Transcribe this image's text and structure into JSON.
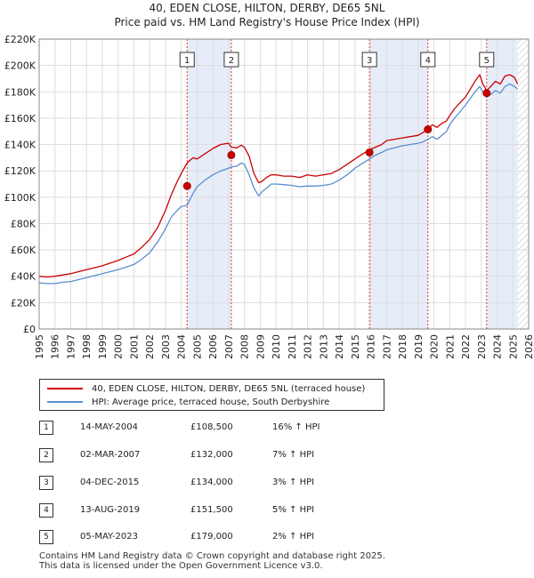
{
  "chart_data": {
    "type": "line",
    "title": "40, EDEN CLOSE, HILTON, DERBY, DE65 5NL",
    "subtitle": "Price paid vs. HM Land Registry's House Price Index (HPI)",
    "xlim": [
      1995,
      2026
    ],
    "ylim": [
      0,
      220000
    ],
    "y_ticks": [
      0,
      20000,
      40000,
      60000,
      80000,
      100000,
      120000,
      140000,
      160000,
      180000,
      200000,
      220000
    ],
    "y_tick_labels": [
      "£0",
      "£20K",
      "£40K",
      "£60K",
      "£80K",
      "£100K",
      "£120K",
      "£140K",
      "£160K",
      "£180K",
      "£200K",
      "£220K"
    ],
    "x_ticks": [
      1995,
      1996,
      1997,
      1998,
      1999,
      2000,
      2001,
      2002,
      2003,
      2004,
      2005,
      2006,
      2007,
      2008,
      2009,
      2010,
      2011,
      2012,
      2013,
      2014,
      2015,
      2016,
      2017,
      2018,
      2019,
      2020,
      2021,
      2022,
      2023,
      2024,
      2025,
      2026
    ],
    "x_tick_labels": [
      "1995",
      "1996",
      "1997",
      "1998",
      "1999",
      "2000",
      "2001",
      "2002",
      "2003",
      "2004",
      "2005",
      "2006",
      "2007",
      "2008",
      "2009",
      "2010",
      "2011",
      "2012",
      "2013",
      "2014",
      "2015",
      "2016",
      "2017",
      "2018",
      "2019",
      "2020",
      "2021",
      "2022",
      "2023",
      "2024",
      "2025",
      "2026"
    ],
    "series": [
      {
        "name": "40, EDEN CLOSE, HILTON, DERBY, DE65 5NL (terraced house)",
        "color": "#cc0000",
        "x": [
          1995.0,
          1995.5,
          1996.0,
          1996.5,
          1997.0,
          1997.5,
          1998.0,
          1998.5,
          1999.0,
          1999.5,
          2000.0,
          2000.5,
          2001.0,
          2001.5,
          2002.0,
          2002.5,
          2003.0,
          2003.37,
          2003.75,
          2004.0,
          2004.37,
          2004.75,
          2005.0,
          2005.5,
          2006.0,
          2006.5,
          2007.0,
          2007.17,
          2007.5,
          2007.8,
          2008.0,
          2008.3,
          2008.6,
          2008.9,
          2009.1,
          2009.4,
          2009.7,
          2010.0,
          2010.5,
          2011.0,
          2011.5,
          2012.0,
          2012.5,
          2013.0,
          2013.5,
          2014.0,
          2014.5,
          2015.0,
          2015.5,
          2015.92,
          2016.3,
          2016.7,
          2017.0,
          2017.5,
          2018.0,
          2018.5,
          2019.0,
          2019.3,
          2019.62,
          2019.9,
          2020.2,
          2020.5,
          2020.8,
          2021.0,
          2021.3,
          2021.6,
          2022.0,
          2022.3,
          2022.6,
          2022.9,
          2023.1,
          2023.34,
          2023.6,
          2023.9,
          2024.2,
          2024.5,
          2024.8,
          2025.1,
          2025.3
        ],
        "y": [
          40000,
          39500,
          40000,
          41000,
          42000,
          43500,
          45000,
          46500,
          48000,
          50000,
          52000,
          54500,
          57000,
          62000,
          68000,
          77000,
          90000,
          102000,
          112000,
          118000,
          126000,
          130000,
          129000,
          133000,
          137000,
          140000,
          141000,
          138000,
          137500,
          139500,
          138000,
          131000,
          118000,
          111000,
          112000,
          115000,
          117000,
          117000,
          116000,
          116000,
          115000,
          117000,
          116000,
          117000,
          118000,
          121000,
          125000,
          129000,
          133000,
          136000,
          138000,
          140000,
          143000,
          144000,
          145000,
          146000,
          147000,
          149000,
          152000,
          155000,
          153000,
          156000,
          158000,
          162000,
          167000,
          171000,
          176000,
          182000,
          188000,
          193000,
          186000,
          181000,
          184000,
          188000,
          186000,
          192000,
          193000,
          191000,
          186000
        ]
      },
      {
        "name": "HPI: Average price, terraced house, South Derbyshire",
        "color": "#5b8fd0",
        "x": [
          1995.0,
          1995.5,
          1996.0,
          1996.5,
          1997.0,
          1997.5,
          1998.0,
          1998.5,
          1999.0,
          1999.5,
          2000.0,
          2000.5,
          2001.0,
          2001.5,
          2002.0,
          2002.5,
          2003.0,
          2003.37,
          2003.75,
          2004.0,
          2004.37,
          2004.75,
          2005.0,
          2005.5,
          2006.0,
          2006.5,
          2007.0,
          2007.17,
          2007.5,
          2007.8,
          2008.0,
          2008.3,
          2008.6,
          2008.9,
          2009.1,
          2009.4,
          2009.7,
          2010.0,
          2010.5,
          2011.0,
          2011.5,
          2012.0,
          2012.5,
          2013.0,
          2013.5,
          2014.0,
          2014.5,
          2015.0,
          2015.5,
          2015.92,
          2016.3,
          2016.7,
          2017.0,
          2017.5,
          2018.0,
          2018.5,
          2019.0,
          2019.3,
          2019.62,
          2019.9,
          2020.2,
          2020.5,
          2020.8,
          2021.0,
          2021.3,
          2021.6,
          2022.0,
          2022.3,
          2022.6,
          2022.9,
          2023.1,
          2023.34,
          2023.6,
          2023.9,
          2024.2,
          2024.5,
          2024.8,
          2025.1,
          2025.3
        ],
        "y": [
          35000,
          34500,
          34500,
          35500,
          36000,
          37500,
          39000,
          40500,
          42000,
          43500,
          45000,
          47000,
          49000,
          53000,
          58000,
          66000,
          76000,
          85000,
          90000,
          93000,
          94000,
          103000,
          108000,
          113000,
          117000,
          120000,
          122000,
          123000,
          123500,
          126000,
          125000,
          117000,
          107000,
          101000,
          104000,
          107000,
          110000,
          110000,
          109500,
          109000,
          108000,
          108500,
          108500,
          109000,
          110000,
          113000,
          117000,
          122000,
          126000,
          129000,
          132000,
          134000,
          136000,
          137500,
          139000,
          140000,
          141000,
          142000,
          144000,
          146000,
          144000,
          147000,
          150000,
          155000,
          160000,
          164000,
          170000,
          175000,
          180000,
          184000,
          180000,
          176000,
          178000,
          181000,
          179000,
          184000,
          186000,
          184000,
          182000
        ]
      }
    ],
    "transactions": [
      {
        "label": "1",
        "x": 2004.37,
        "y": 108500
      },
      {
        "label": "2",
        "x": 2007.17,
        "y": 132000
      },
      {
        "label": "3",
        "x": 2015.92,
        "y": 134000
      },
      {
        "label": "4",
        "x": 2019.62,
        "y": 151500
      },
      {
        "label": "5",
        "x": 2023.34,
        "y": 179000
      }
    ],
    "shaded_periods": [
      [
        2004.37,
        2007.17
      ],
      [
        2015.92,
        2019.62
      ],
      [
        2023.34,
        2025.3
      ]
    ],
    "hatched_after": 2025.3,
    "grid": true
  },
  "legend": {
    "property_label": "40, EDEN CLOSE, HILTON, DERBY, DE65 5NL (terraced house)",
    "hpi_label": "HPI: Average price, terraced house, South Derbyshire",
    "property_color": "#cc0000",
    "hpi_color": "#5b8fd0"
  },
  "transactions_table": [
    {
      "num": "1",
      "date": "14-MAY-2004",
      "price": "£108,500",
      "hpi": "16% ↑ HPI"
    },
    {
      "num": "2",
      "date": "02-MAR-2007",
      "price": "£132,000",
      "hpi": "7% ↑ HPI"
    },
    {
      "num": "3",
      "date": "04-DEC-2015",
      "price": "£134,000",
      "hpi": "3% ↑ HPI"
    },
    {
      "num": "4",
      "date": "13-AUG-2019",
      "price": "£151,500",
      "hpi": "5% ↑ HPI"
    },
    {
      "num": "5",
      "date": "05-MAY-2023",
      "price": "£179,000",
      "hpi": "2% ↑ HPI"
    }
  ],
  "footer": {
    "line1": "Contains HM Land Registry data © Crown copyright and database right 2025.",
    "line2": "This data is licensed under the Open Government Licence v3.0."
  }
}
